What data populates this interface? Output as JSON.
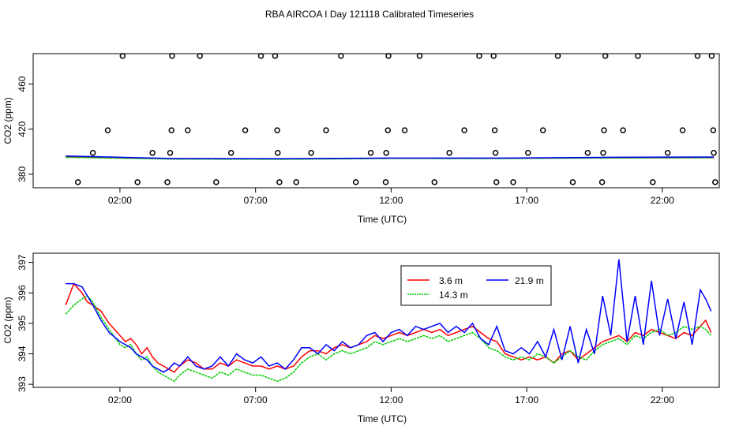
{
  "figure": {
    "title": "RBA AIRCOA I  Day 121118  Calibrated Timeseries"
  },
  "chart_data": [
    {
      "type": "scatter",
      "xlabel": "Time (UTC)",
      "ylabel": "CO2 (ppm)",
      "xlim": [
        -1.2,
        24.1
      ],
      "ylim": [
        368,
        487
      ],
      "xticks": [
        2,
        7,
        12,
        17,
        22
      ],
      "xtick_labels": [
        "02:00",
        "07:00",
        "12:00",
        "17:00",
        "22:00"
      ],
      "yticks": [
        380,
        420,
        460
      ],
      "ytick_labels": [
        "380",
        "420",
        "460"
      ],
      "grid": false,
      "points": {
        "x": [
          0.45,
          1.0,
          1.55,
          2.1,
          2.65,
          3.2,
          3.75,
          3.85,
          3.9,
          3.92,
          4.5,
          4.95,
          5.55,
          6.1,
          6.62,
          7.2,
          7.72,
          7.8,
          7.82,
          7.88,
          8.5,
          9.05,
          9.6,
          10.15,
          10.7,
          11.25,
          11.8,
          11.82,
          11.88,
          11.9,
          12.5,
          13.05,
          13.6,
          14.15,
          14.7,
          15.25,
          15.78,
          15.82,
          15.85,
          15.88,
          16.5,
          17.05,
          17.6,
          18.15,
          18.7,
          19.25,
          19.78,
          19.82,
          19.85,
          19.9,
          20.55,
          21.1,
          21.65,
          22.2,
          22.75,
          23.3,
          23.82,
          23.88,
          23.9,
          23.95
        ],
        "y": [
          373,
          399,
          419,
          485,
          373,
          399,
          373,
          399,
          419,
          485,
          419,
          485,
          373,
          399,
          419,
          485,
          485,
          419,
          399,
          373,
          373,
          399,
          419,
          485,
          373,
          399,
          373,
          399,
          419,
          485,
          419,
          485,
          373,
          399,
          419,
          485,
          485,
          419,
          399,
          373,
          373,
          399,
          419,
          485,
          373,
          399,
          373,
          399,
          419,
          485,
          419,
          485,
          373,
          399,
          419,
          485,
          485,
          419,
          399,
          373
        ]
      },
      "series": [
        {
          "color": "#ff0000",
          "x": [
            0,
            4,
            8,
            12,
            16,
            20,
            23.9
          ],
          "y": [
            395.4,
            393.8,
            393.6,
            394.2,
            394.1,
            394.6,
            394.7
          ]
        },
        {
          "color": "#00cc00",
          "x": [
            0,
            4,
            8,
            12,
            16,
            20,
            23.9
          ],
          "y": [
            395.0,
            393.4,
            393.2,
            394.0,
            393.9,
            394.4,
            394.6
          ]
        },
        {
          "color": "#0000ff",
          "x": [
            0,
            4,
            8,
            12,
            16,
            20,
            23.9
          ],
          "y": [
            396.2,
            393.9,
            393.8,
            394.3,
            394.3,
            395.0,
            395.3
          ]
        }
      ]
    },
    {
      "type": "line",
      "xlabel": "Time (UTC)",
      "ylabel": "CO2 (ppm)",
      "xlim": [
        -1.2,
        24.1
      ],
      "ylim": [
        392.9,
        397.3
      ],
      "xticks": [
        2,
        7,
        12,
        17,
        22
      ],
      "xtick_labels": [
        "02:00",
        "07:00",
        "12:00",
        "17:00",
        "22:00"
      ],
      "yticks": [
        393,
        394,
        395,
        396,
        397
      ],
      "ytick_labels": [
        "393",
        "394",
        "395",
        "396",
        "397"
      ],
      "grid": false,
      "legend_position": "top-right",
      "series": [
        {
          "name": "3.6 m",
          "color": "#ff0000",
          "x": [
            0,
            0.3,
            0.6,
            0.8,
            1.0,
            1.3,
            1.6,
            2.0,
            2.2,
            2.4,
            2.6,
            2.8,
            3.0,
            3.2,
            3.4,
            3.6,
            3.8,
            4.0,
            4.2,
            4.5,
            4.8,
            5.1,
            5.4,
            5.7,
            6.0,
            6.3,
            6.6,
            6.9,
            7.2,
            7.5,
            7.8,
            8.1,
            8.4,
            8.7,
            9.0,
            9.3,
            9.6,
            9.9,
            10.2,
            10.5,
            10.8,
            11.1,
            11.4,
            11.7,
            12.0,
            12.3,
            12.6,
            12.9,
            13.2,
            13.5,
            13.8,
            14.1,
            14.4,
            14.7,
            15.0,
            15.3,
            15.6,
            15.9,
            16.2,
            16.5,
            16.8,
            17.1,
            17.4,
            17.7,
            18.0,
            18.3,
            18.6,
            18.9,
            19.2,
            19.5,
            19.8,
            20.1,
            20.4,
            20.7,
            21.0,
            21.3,
            21.6,
            21.9,
            22.2,
            22.5,
            22.8,
            23.1,
            23.4,
            23.6,
            23.8
          ],
          "y": [
            395.6,
            396.3,
            396.0,
            395.7,
            395.6,
            395.4,
            395.0,
            394.6,
            394.4,
            394.5,
            394.3,
            394.0,
            394.2,
            393.9,
            393.7,
            393.6,
            393.5,
            393.4,
            393.6,
            393.8,
            393.7,
            393.5,
            393.5,
            393.7,
            393.6,
            393.8,
            393.7,
            393.6,
            393.6,
            393.5,
            393.6,
            393.5,
            393.6,
            393.9,
            394.1,
            394.1,
            394.0,
            394.2,
            394.3,
            394.2,
            394.3,
            394.4,
            394.6,
            394.5,
            394.6,
            394.7,
            394.6,
            394.7,
            394.8,
            394.7,
            394.8,
            394.6,
            394.7,
            394.8,
            394.9,
            394.7,
            394.5,
            394.4,
            394.0,
            393.9,
            393.8,
            393.9,
            393.8,
            393.9,
            393.7,
            394.0,
            394.1,
            393.8,
            394.0,
            394.2,
            394.4,
            394.5,
            394.6,
            394.4,
            394.7,
            394.6,
            394.8,
            394.7,
            394.6,
            394.5,
            394.7,
            394.6,
            394.9,
            395.1,
            394.7
          ]
        },
        {
          "name": "14.3 m",
          "color": "#00cc00",
          "x": [
            0,
            0.3,
            0.6,
            0.8,
            1.0,
            1.3,
            1.6,
            2.0,
            2.2,
            2.4,
            2.6,
            2.8,
            3.0,
            3.2,
            3.4,
            3.6,
            3.8,
            4.0,
            4.2,
            4.5,
            4.8,
            5.1,
            5.4,
            5.7,
            6.0,
            6.3,
            6.6,
            6.9,
            7.2,
            7.5,
            7.8,
            8.1,
            8.4,
            8.7,
            9.0,
            9.3,
            9.6,
            9.9,
            10.2,
            10.5,
            10.8,
            11.1,
            11.4,
            11.7,
            12.0,
            12.3,
            12.6,
            12.9,
            13.2,
            13.5,
            13.8,
            14.1,
            14.4,
            14.7,
            15.0,
            15.3,
            15.6,
            15.9,
            16.2,
            16.5,
            16.8,
            17.1,
            17.4,
            17.7,
            18.0,
            18.3,
            18.6,
            18.9,
            19.2,
            19.5,
            19.8,
            20.1,
            20.4,
            20.7,
            21.0,
            21.3,
            21.6,
            21.9,
            22.2,
            22.5,
            22.8,
            23.1,
            23.4,
            23.6,
            23.8
          ],
          "y": [
            395.3,
            395.6,
            395.8,
            395.9,
            395.7,
            395.2,
            394.8,
            394.3,
            394.2,
            394.3,
            394.0,
            393.8,
            393.9,
            393.6,
            393.4,
            393.3,
            393.2,
            393.1,
            393.3,
            393.5,
            393.4,
            393.3,
            393.2,
            393.4,
            393.3,
            393.5,
            393.4,
            393.3,
            393.3,
            393.2,
            393.1,
            393.2,
            393.4,
            393.7,
            393.9,
            394.0,
            393.8,
            394.0,
            394.1,
            394.0,
            394.1,
            394.2,
            394.4,
            394.3,
            394.4,
            394.5,
            394.4,
            394.5,
            394.6,
            394.5,
            394.6,
            394.4,
            394.5,
            394.6,
            394.7,
            394.5,
            394.2,
            394.1,
            393.9,
            393.8,
            393.9,
            393.8,
            394.0,
            393.9,
            393.7,
            393.9,
            394.1,
            393.9,
            393.8,
            394.1,
            394.3,
            394.4,
            394.5,
            394.3,
            394.6,
            394.5,
            394.7,
            394.8,
            394.6,
            394.7,
            394.9,
            394.8,
            394.9,
            394.8,
            394.6
          ]
        },
        {
          "name": "21.9 m",
          "color": "#0000ff",
          "x": [
            0,
            0.3,
            0.6,
            0.8,
            1.0,
            1.3,
            1.6,
            2.0,
            2.2,
            2.4,
            2.6,
            2.8,
            3.0,
            3.2,
            3.4,
            3.6,
            3.8,
            4.0,
            4.2,
            4.5,
            4.8,
            5.1,
            5.4,
            5.7,
            6.0,
            6.3,
            6.6,
            6.9,
            7.2,
            7.5,
            7.8,
            8.1,
            8.4,
            8.7,
            9.0,
            9.3,
            9.6,
            9.9,
            10.2,
            10.5,
            10.8,
            11.1,
            11.4,
            11.7,
            12.0,
            12.3,
            12.6,
            12.9,
            13.2,
            13.5,
            13.8,
            14.1,
            14.4,
            14.7,
            15.0,
            15.3,
            15.6,
            15.9,
            16.2,
            16.5,
            16.8,
            17.1,
            17.4,
            17.7,
            18.0,
            18.3,
            18.6,
            18.9,
            19.2,
            19.5,
            19.8,
            20.1,
            20.4,
            20.7,
            21.0,
            21.3,
            21.6,
            21.9,
            22.2,
            22.5,
            22.8,
            23.1,
            23.4,
            23.6,
            23.8
          ],
          "y": [
            396.3,
            396.3,
            396.2,
            395.9,
            395.6,
            395.1,
            394.7,
            394.4,
            394.3,
            394.2,
            394.0,
            393.9,
            393.8,
            393.6,
            393.5,
            393.4,
            393.5,
            393.7,
            393.6,
            393.9,
            393.6,
            393.5,
            393.6,
            393.9,
            393.6,
            394.0,
            393.8,
            393.7,
            393.9,
            393.6,
            393.7,
            393.5,
            393.8,
            394.2,
            394.2,
            394.0,
            394.3,
            394.1,
            394.4,
            394.2,
            394.3,
            394.6,
            394.7,
            394.4,
            394.7,
            394.8,
            394.6,
            394.9,
            394.8,
            394.9,
            395.0,
            394.7,
            394.9,
            394.7,
            395.0,
            394.5,
            394.3,
            394.9,
            394.1,
            394.0,
            394.2,
            394.0,
            394.4,
            393.9,
            394.8,
            393.8,
            394.9,
            393.7,
            394.8,
            394.0,
            395.9,
            394.6,
            397.1,
            394.4,
            395.9,
            394.3,
            396.4,
            394.6,
            395.8,
            394.5,
            395.7,
            394.3,
            396.1,
            395.8,
            395.4
          ]
        }
      ]
    }
  ]
}
